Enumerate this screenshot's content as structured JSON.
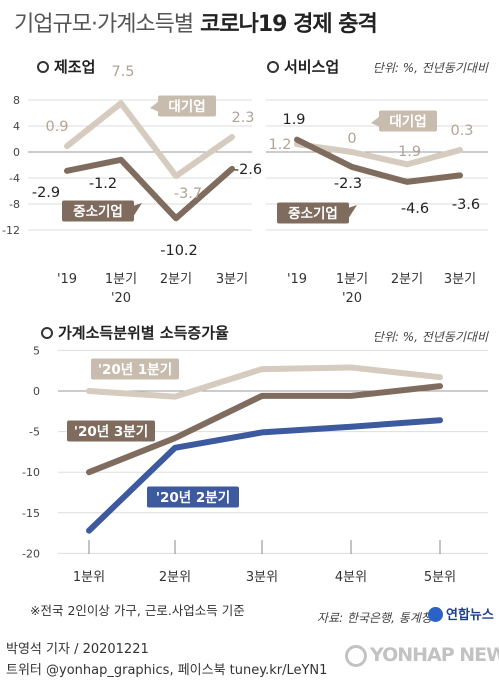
{
  "title": {
    "light": "기업규모·가계소득별",
    "bold": "코로나19 경제 충격"
  },
  "colors": {
    "large_light": "#d5cbbf",
    "small_dark": "#806c5f",
    "blue": "#3d5a9e",
    "label_large_bg": "#c8bcae",
    "grid": "#dddddd"
  },
  "chart_data": [
    {
      "type": "line",
      "title": "제조업",
      "ylim": [
        -12,
        8
      ],
      "yticks": [
        "8",
        "4",
        "0",
        "-4",
        "-8",
        "-12"
      ],
      "ytick_values": [
        8,
        4,
        0,
        -4,
        -8,
        -12
      ],
      "categories": [
        "'19",
        "1분기\n'20",
        "2분기",
        "3분기"
      ],
      "category_lines": [
        [
          "'19"
        ],
        [
          "1분기",
          "'20"
        ],
        [
          "2분기"
        ],
        [
          "3분기"
        ]
      ],
      "series": [
        {
          "name": "대기업",
          "values": [
            0.9,
            7.5,
            -3.7,
            2.3
          ],
          "labels": [
            "0.9",
            "7.5",
            "-3.7",
            "2.3"
          ]
        },
        {
          "name": "중소기업",
          "values": [
            -2.9,
            -1.2,
            -10.2,
            -2.6
          ],
          "labels": [
            "-2.9",
            "-1.2",
            "-10.2",
            "-2.6"
          ]
        }
      ]
    },
    {
      "type": "line",
      "title": "서비스업",
      "unit": "단위: %, 전년동기대비",
      "ylim": [
        -12,
        8
      ],
      "categories": [
        "'19",
        "1분기\n'20",
        "2분기",
        "3분기"
      ],
      "category_lines": [
        [
          "'19"
        ],
        [
          "1분기",
          "'20"
        ],
        [
          "2분기"
        ],
        [
          "3분기"
        ]
      ],
      "series": [
        {
          "name": "대기업",
          "values": [
            1.2,
            0,
            -1.9,
            0.3
          ],
          "labels": [
            "1.2",
            "0",
            "-1.9",
            "0.3"
          ]
        },
        {
          "name": "중소기업",
          "values": [
            1.9,
            -2.3,
            -4.6,
            -3.6
          ],
          "labels": [
            "1.9",
            "-2.3",
            "-4.6",
            "-3.6"
          ]
        }
      ]
    },
    {
      "type": "line",
      "title": "가계소득분위별 소득증가율",
      "unit": "단위: %, 전년동기대비",
      "ylim": [
        -20,
        5
      ],
      "yticks": [
        "5",
        "0",
        "-5",
        "-10",
        "-15",
        "-20"
      ],
      "ytick_values": [
        5,
        0,
        -5,
        -10,
        -15,
        -20
      ],
      "categories": [
        "1분위",
        "2분위",
        "3분위",
        "4분위",
        "5분위"
      ],
      "series": [
        {
          "name": "'20년 1분기",
          "values": [
            0,
            -0.7,
            2.7,
            2.9,
            1.7
          ]
        },
        {
          "name": "'20년 3분기",
          "values": [
            -10,
            -5.8,
            -0.6,
            -0.6,
            0.6
          ]
        },
        {
          "name": "'20년 2분기",
          "values": [
            -17.2,
            -7,
            -5.1,
            -4.4,
            -3.6
          ]
        }
      ]
    }
  ],
  "footnote": "※전국 2인이상 가구, 근로.사업소득 기준",
  "source": "자료: 한국은행, 통계청",
  "credit": "박영석 기자 / 20201221",
  "social": "트위터 @yonhap_graphics, 페이스북 tuney.kr/LeYN1",
  "logo": "연합뉴스",
  "watermark": "YONHAP NEWS"
}
